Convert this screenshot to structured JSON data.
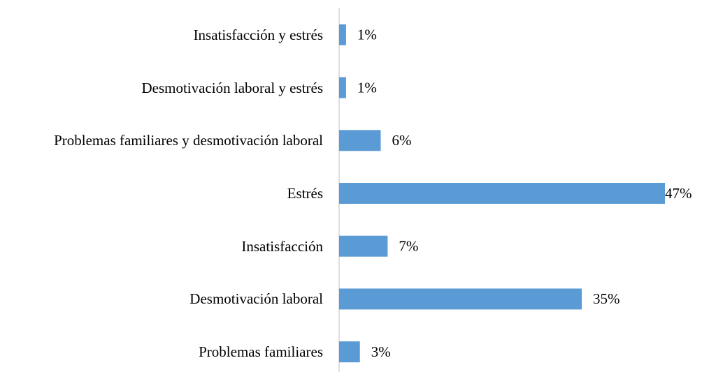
{
  "chart_data": {
    "type": "bar",
    "orientation": "horizontal",
    "categories": [
      "Insatisfacción y estrés",
      "Desmotivación laboral y estrés",
      "Problemas familiares y desmotivación laboral",
      "Estrés",
      "Insatisfacción",
      "Desmotivación laboral",
      "Problemas familiares"
    ],
    "values": [
      1,
      1,
      6,
      47,
      7,
      35,
      3
    ],
    "value_labels": [
      "1%",
      "1%",
      "6%",
      "47%",
      "7%",
      "35%",
      "3%"
    ],
    "color": "#5b9bd5"
  }
}
